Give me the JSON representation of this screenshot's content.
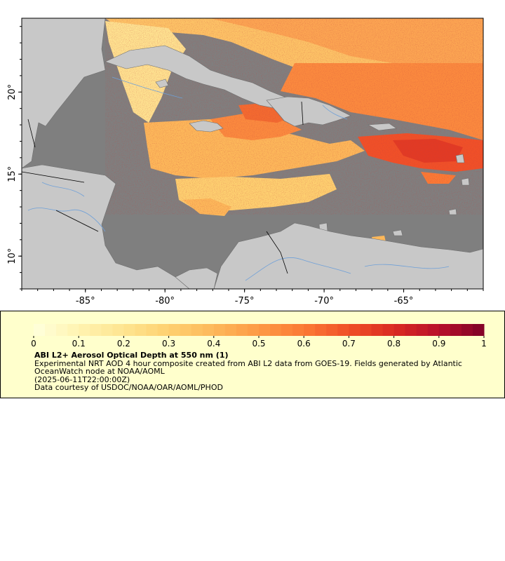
{
  "map": {
    "lat_ticks": [
      {
        "value": 10,
        "label": "10°"
      },
      {
        "value": 15,
        "label": "15°"
      },
      {
        "value": 20,
        "label": "20°"
      }
    ],
    "lon_ticks": [
      {
        "value": -85,
        "label": "-85°"
      },
      {
        "value": -80,
        "label": "-80°"
      },
      {
        "value": -75,
        "label": "-75°"
      },
      {
        "value": -70,
        "label": "-70°"
      },
      {
        "value": -65,
        "label": "-65°"
      }
    ],
    "extent": {
      "lon_min": -89,
      "lon_max": -60,
      "lat_min": 8,
      "lat_max": 24.5
    },
    "colors": {
      "ocean": "#7f7f7f",
      "land": "#c8c8c8",
      "rivers": "#6fa0d8",
      "borders": "#000000"
    }
  },
  "legend": {
    "colorbar_labels": [
      "0",
      "0.1",
      "0.2",
      "0.3",
      "0.4",
      "0.5",
      "0.6",
      "0.7",
      "0.8",
      "0.9",
      "1"
    ],
    "colorbar_range": [
      0,
      1
    ],
    "colorbar_colors": [
      "#ffffdd",
      "#fff3b0",
      "#fee490",
      "#fed070",
      "#fdb85a",
      "#fd9a45",
      "#fb7a35",
      "#f05028",
      "#da2a22",
      "#b8102a",
      "#7f0126"
    ],
    "title": "ABI L2+ Aerosol Optical Depth at 550 nm (1)",
    "line1": "Experimental NRT AOD 4 hour composite created from ABI L2 data from GOES-19. Fields generated by Atlantic OceanWatch node at NOAA/AOML",
    "line2": "(2025-06-11T22:00:00Z)",
    "line3": "Data courtesy of USDOC/NOAA/OAR/AOML/PHOD"
  }
}
